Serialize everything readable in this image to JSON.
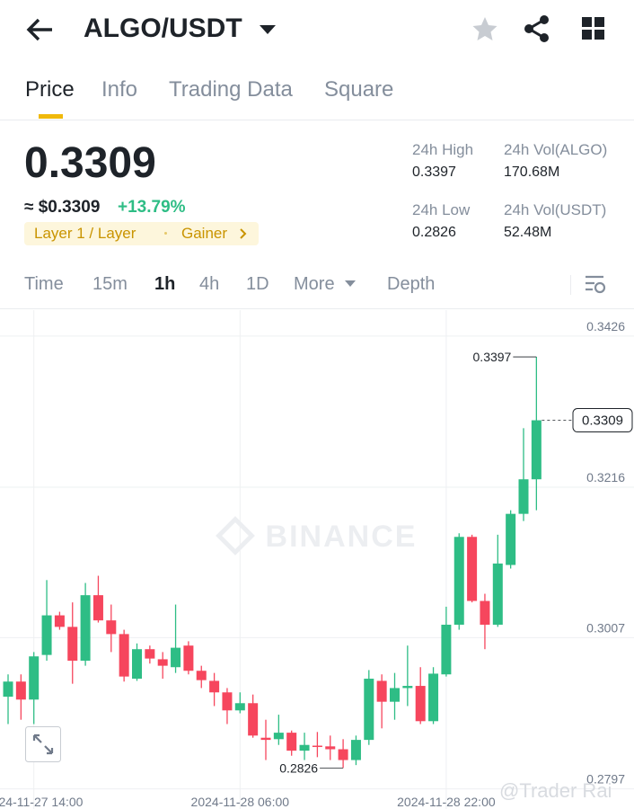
{
  "header": {
    "pair": "ALGO/USDT"
  },
  "tabs": [
    "Price",
    "Info",
    "Trading Data",
    "Square"
  ],
  "price": {
    "last": "0.3309",
    "approx": "≈ $0.3309",
    "change": "+13.79%",
    "tags": [
      "Layer 1 / Layer",
      "Gainer"
    ]
  },
  "stats": [
    {
      "label": "24h High",
      "value": "0.3397"
    },
    {
      "label": "24h Vol(ALGO)",
      "value": "170.68M"
    },
    {
      "label": "24h Low",
      "value": "0.2826"
    },
    {
      "label": "24h Vol(USDT)",
      "value": "52.48M"
    }
  ],
  "intervals": [
    "Time",
    "15m",
    "1h",
    "4h",
    "1D",
    "More",
    "Depth"
  ],
  "chart_data": {
    "type": "candlestick",
    "watermark": "BINANCE",
    "credit": "@Trader Rai",
    "up_color": "#2ebd85",
    "down_color": "#f6465d",
    "grid": true,
    "ylim": [
      0.2769,
      0.3462
    ],
    "yticks": [
      0.3426,
      0.3216,
      0.3007,
      0.2797
    ],
    "categories": [
      null,
      null,
      "2024-11-27 14:00",
      null,
      null,
      null,
      null,
      null,
      null,
      null,
      null,
      null,
      null,
      null,
      null,
      null,
      null,
      null,
      "2024-11-28 06:00",
      null,
      null,
      null,
      null,
      null,
      null,
      null,
      null,
      null,
      null,
      null,
      null,
      null,
      null,
      null,
      "2024-11-28 22:00",
      null,
      null,
      null,
      null,
      null,
      null,
      null
    ],
    "open": [
      0.2925,
      0.2946,
      0.2921,
      0.2983,
      0.3038,
      0.3022,
      0.2975,
      0.3066,
      0.3031,
      0.3012,
      0.295,
      0.2991,
      0.2977,
      0.2966,
      0.2996,
      0.2961,
      0.2947,
      0.2931,
      0.2906,
      0.2916,
      0.2868,
      0.2866,
      0.2875,
      0.285,
      0.2857,
      0.2856,
      0.2852,
      0.2837,
      0.2865,
      0.2947,
      0.2918,
      0.2937,
      0.294,
      0.2891,
      0.2956,
      0.3025,
      0.3147,
      0.3058,
      0.3025,
      0.3108,
      0.3179,
      0.3227
    ],
    "high": [
      0.2956,
      0.2956,
      0.2987,
      0.3087,
      0.3043,
      0.3056,
      0.3083,
      0.3093,
      0.3053,
      0.3018,
      0.2999,
      0.2996,
      0.2987,
      0.3053,
      0.3002,
      0.2968,
      0.2958,
      0.2937,
      0.2931,
      0.2928,
      0.2893,
      0.29,
      0.2878,
      0.2875,
      0.2876,
      0.2871,
      0.2866,
      0.2871,
      0.2962,
      0.2956,
      0.2958,
      0.2996,
      0.2966,
      0.2966,
      0.305,
      0.3152,
      0.315,
      0.3068,
      0.315,
      0.3184,
      0.3298,
      0.3397
    ],
    "low": [
      0.2887,
      0.2893,
      0.2887,
      0.2975,
      0.3018,
      0.2943,
      0.2968,
      0.3028,
      0.2987,
      0.2946,
      0.2947,
      0.2971,
      0.295,
      0.2958,
      0.2956,
      0.2937,
      0.2912,
      0.2887,
      0.2902,
      0.2868,
      0.2837,
      0.2858,
      0.2843,
      0.2837,
      0.2841,
      0.2837,
      0.2826,
      0.283,
      0.2858,
      0.2881,
      0.2893,
      0.2912,
      0.2887,
      0.2887,
      0.2953,
      0.3018,
      0.3056,
      0.2991,
      0.3022,
      0.3103,
      0.3169,
      0.3184
    ],
    "close": [
      0.2946,
      0.2921,
      0.2981,
      0.3038,
      0.3022,
      0.2975,
      0.3066,
      0.3031,
      0.3012,
      0.2953,
      0.2991,
      0.2978,
      0.2968,
      0.2993,
      0.2961,
      0.2948,
      0.2931,
      0.2906,
      0.2916,
      0.2871,
      0.2865,
      0.2875,
      0.285,
      0.2858,
      0.2856,
      0.2852,
      0.2837,
      0.2865,
      0.295,
      0.2918,
      0.2937,
      0.294,
      0.2891,
      0.2957,
      0.3025,
      0.3147,
      0.3058,
      0.3025,
      0.311,
      0.3179,
      0.3227,
      0.3309
    ]
  }
}
